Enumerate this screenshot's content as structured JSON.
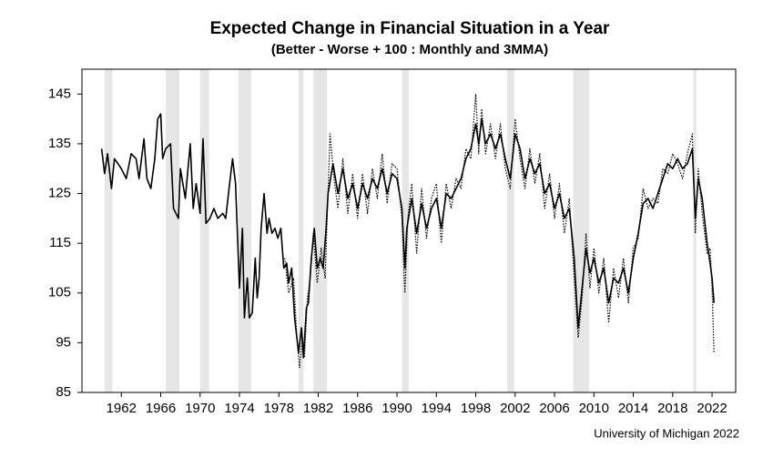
{
  "chart_data": {
    "type": "line",
    "title": "Expected Change in Financial Situation in a Year",
    "subtitle": "(Better - Worse + 100 : Monthly and 3MMA)",
    "source": "University of Michigan 2022",
    "xlim": [
      1958,
      2024.4
    ],
    "xticks": [
      1962,
      1966,
      1970,
      1974,
      1978,
      1982,
      1986,
      1990,
      1994,
      1998,
      2002,
      2006,
      2010,
      2014,
      2018,
      2022
    ],
    "ylim": [
      85,
      150
    ],
    "yticks": [
      85,
      95,
      105,
      115,
      125,
      135,
      145
    ],
    "band_color": "#e6e6e6",
    "bands": [
      [
        1960.3,
        1961.1
      ],
      [
        1966.5,
        1967.9
      ],
      [
        1970,
        1970.9
      ],
      [
        1973.9,
        1975.2
      ],
      [
        1980,
        1980.5
      ],
      [
        1981.5,
        1982.9
      ],
      [
        1990.5,
        1991.2
      ],
      [
        2001.2,
        2001.9
      ],
      [
        2007.9,
        2009.5
      ],
      [
        2020.1,
        2020.4
      ]
    ],
    "series": [
      {
        "color": "#000000",
        "dash": true,
        "x": [
          1978.6,
          1979,
          1979.5,
          1979.8,
          1980.1,
          1980.4,
          1980.6,
          1980.9,
          1981.2,
          1981.5,
          1981.9,
          1982.3,
          1982.7,
          1982.9,
          1983.2,
          1983.6,
          1984,
          1984.5,
          1985,
          1985.5,
          1986,
          1986.5,
          1987,
          1987.5,
          1988,
          1988.5,
          1989,
          1989.5,
          1990,
          1990.5,
          1990.8,
          1991.1,
          1991.5,
          1992,
          1992.5,
          1993,
          1993.5,
          1994,
          1994.5,
          1995,
          1995.5,
          1996,
          1996.5,
          1997,
          1997.5,
          1998,
          1998.3,
          1998.6,
          1999,
          1999.5,
          2000,
          2000.5,
          2001,
          2001.5,
          2002,
          2002.5,
          2003,
          2003.5,
          2004,
          2004.5,
          2005,
          2005.5,
          2006,
          2006.5,
          2007,
          2007.5,
          2008,
          2008.4,
          2008.8,
          2009.2,
          2009.6,
          2010,
          2010.5,
          2011,
          2011.5,
          2012,
          2012.5,
          2013,
          2013.5,
          2014,
          2014.5,
          2015,
          2015.5,
          2016,
          2016.5,
          2017,
          2017.5,
          2018,
          2018.5,
          2019,
          2019.5,
          2020,
          2020.3,
          2020.6,
          2021,
          2021.5,
          2021.8,
          2022,
          2022.2
        ],
        "values": [
          112,
          105,
          108,
          97,
          90,
          96,
          92,
          104,
          108,
          117,
          107,
          114,
          108,
          120,
          137,
          128,
          122,
          132,
          121,
          129,
          120,
          129,
          121,
          130,
          124,
          133,
          123,
          131,
          130,
          120,
          105,
          120,
          127,
          113,
          126,
          116,
          124,
          127,
          115,
          127,
          122,
          128,
          126,
          134,
          132,
          145,
          133,
          142,
          133,
          139,
          132,
          139,
          130,
          126,
          140,
          132,
          126,
          134,
          127,
          133,
          122,
          129,
          120,
          127,
          117,
          124,
          108,
          96,
          104,
          117,
          106,
          114,
          105,
          112,
          99,
          110,
          104,
          112,
          103,
          114,
          116,
          126,
          122,
          124,
          123,
          130,
          129,
          133,
          131,
          128,
          133,
          137,
          117,
          130,
          121,
          113,
          114,
          106,
          93
        ]
      },
      {
        "color": "#000000",
        "dash": false,
        "x": [
          1960,
          1960.3,
          1960.6,
          1961,
          1961.3,
          1962,
          1962.5,
          1963,
          1963.5,
          1963.8,
          1964.3,
          1964.6,
          1965,
          1965.4,
          1965.7,
          1966,
          1966.2,
          1966.5,
          1967,
          1967.3,
          1967.8,
          1968,
          1968.5,
          1969,
          1969.3,
          1969.6,
          1970,
          1970.3,
          1970.6,
          1971,
          1971.4,
          1971.8,
          1972.3,
          1972.6,
          1973,
          1973.3,
          1973.6,
          1974,
          1974.3,
          1974.5,
          1974.8,
          1975,
          1975.3,
          1975.6,
          1975.8,
          1976,
          1976.2,
          1976.5,
          1976.8,
          1977,
          1977.3,
          1977.6,
          1977.9,
          1978.2,
          1978.5,
          1978.8,
          1979,
          1979.3,
          1979.6,
          1980,
          1980.3,
          1980.5,
          1980.8,
          1981,
          1981.3,
          1981.6,
          1981.9,
          1982.2,
          1982.5,
          1982.8,
          1983,
          1983.5,
          1984,
          1984.5,
          1985,
          1985.5,
          1986,
          1986.5,
          1987,
          1987.5,
          1988,
          1988.5,
          1989,
          1989.5,
          1990,
          1990.5,
          1990.8,
          1991,
          1991.5,
          1992,
          1992.5,
          1993,
          1993.5,
          1994,
          1994.5,
          1995,
          1995.5,
          1996,
          1996.5,
          1997,
          1997.5,
          1998,
          1998.3,
          1998.6,
          1999,
          1999.5,
          2000,
          2000.5,
          2001,
          2001.5,
          2002,
          2002.5,
          2003,
          2003.5,
          2004,
          2004.5,
          2005,
          2005.5,
          2006,
          2006.5,
          2007,
          2007.5,
          2008,
          2008.4,
          2008.8,
          2009.2,
          2009.6,
          2010,
          2010.5,
          2011,
          2011.5,
          2012,
          2012.5,
          2013,
          2013.5,
          2014,
          2014.5,
          2015,
          2015.5,
          2016,
          2016.5,
          2017,
          2017.5,
          2018,
          2018.5,
          2019,
          2019.5,
          2020,
          2020.3,
          2020.6,
          2021,
          2021.5,
          2021.8,
          2022,
          2022.2
        ],
        "values": [
          134,
          129,
          133,
          126,
          132,
          130,
          128,
          133,
          132,
          128,
          136,
          128,
          126,
          132,
          140,
          141,
          132,
          134,
          135,
          122,
          120,
          130,
          124,
          135,
          122,
          127,
          121,
          136,
          119,
          120,
          122,
          120,
          121,
          120,
          127,
          132,
          127,
          106,
          118,
          100,
          108,
          100,
          101,
          112,
          104,
          108,
          118,
          125,
          117,
          120,
          117,
          118,
          116,
          118,
          110,
          111,
          107,
          110,
          100,
          93,
          98,
          92,
          102,
          103,
          112,
          118,
          110,
          112,
          110,
          118,
          125,
          131,
          125,
          130,
          124,
          127,
          122,
          127,
          124,
          128,
          126,
          130,
          125,
          129,
          128,
          122,
          110,
          118,
          124,
          117,
          123,
          118,
          122,
          124,
          118,
          125,
          124,
          126,
          128,
          132,
          134,
          139,
          135,
          140,
          135,
          137,
          134,
          137,
          132,
          128,
          137,
          134,
          128,
          132,
          129,
          131,
          125,
          127,
          122,
          125,
          120,
          122,
          112,
          98,
          106,
          114,
          109,
          112,
          107,
          110,
          103,
          108,
          107,
          110,
          105,
          112,
          117,
          123,
          124,
          122,
          125,
          128,
          131,
          130,
          132,
          130,
          131,
          134,
          120,
          128,
          124,
          115,
          111,
          108,
          103
        ]
      }
    ]
  }
}
